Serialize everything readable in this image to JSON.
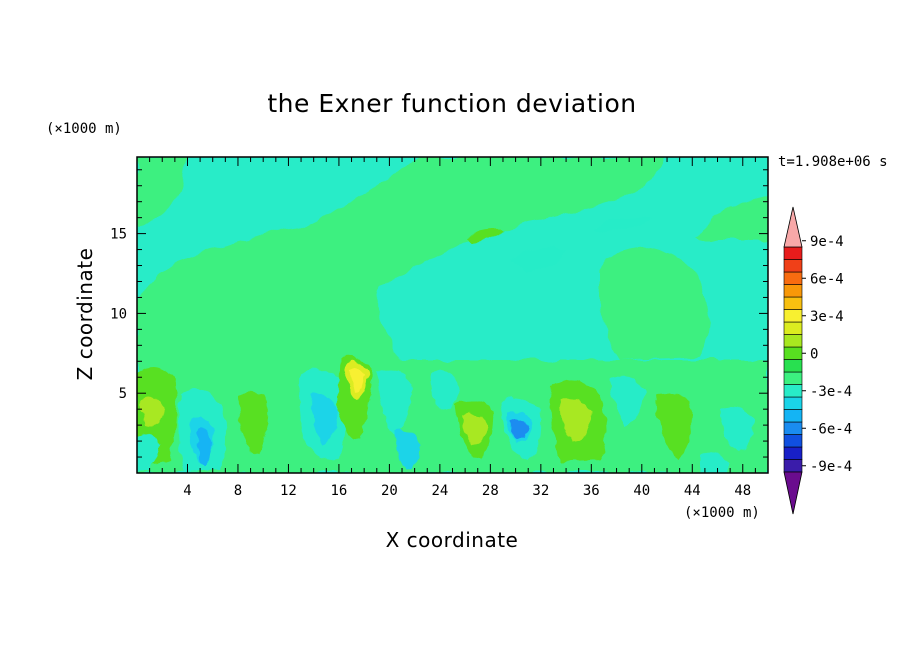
{
  "chart_data": {
    "type": "contour",
    "title": "the Exner function deviation",
    "xlabel": "X coordinate",
    "ylabel": "Z coordinate",
    "x_unit": "(×1000 m)",
    "y_unit": "(×1000 m)",
    "time_label": "t=1.908e+06 s",
    "xlim": [
      0,
      50
    ],
    "ylim": [
      0,
      19.8
    ],
    "x_ticks": [
      4,
      8,
      12,
      16,
      20,
      24,
      28,
      32,
      36,
      40,
      44,
      48
    ],
    "y_ticks": [
      5,
      10,
      15
    ],
    "colorbar": {
      "tick_labels": [
        "9e-4",
        "6e-4",
        "3e-4",
        "0",
        "-3e-4",
        "-6e-4",
        "-9e-4"
      ],
      "tick_values": [
        0.0009,
        0.0006,
        0.0003,
        0,
        -0.0003,
        -0.0006,
        -0.0009
      ],
      "levels_step": 0.0001,
      "colors": [
        "#6a0c8e",
        "#3a1caa",
        "#1820c8",
        "#1050e0",
        "#1a8cf0",
        "#14b4f4",
        "#1ad4e8",
        "#28ecc8",
        "#3cf080",
        "#28e050",
        "#58e020",
        "#a8e820",
        "#dcec20",
        "#f8f030",
        "#f8c010",
        "#f89808",
        "#f86c10",
        "#f04018",
        "#e81c1c",
        "#f8a8a8"
      ]
    },
    "features": [
      {
        "x": 5.5,
        "z": 1.6,
        "value": -0.00048
      },
      {
        "x": 30.5,
        "z": 2.8,
        "value": -0.00072
      },
      {
        "x": 17.5,
        "z": 6.0,
        "value": 0.00036
      },
      {
        "x": 14.8,
        "z": 3.8,
        "value": -0.00022
      },
      {
        "x": 3.5,
        "z": 4.0,
        "value": 0.00018
      },
      {
        "x": 22.5,
        "z": 15.0,
        "value": 0.00014
      },
      {
        "x": 31.0,
        "z": 13.5,
        "value": -0.00012
      },
      {
        "x": 39.0,
        "z": 15.5,
        "value": -0.00012
      }
    ]
  }
}
